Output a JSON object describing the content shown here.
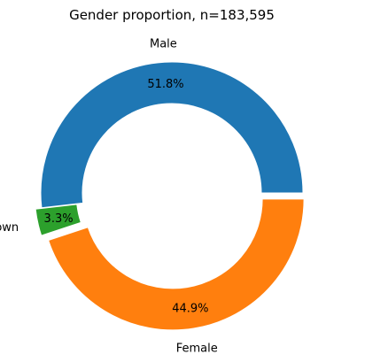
{
  "chart_data": {
    "type": "pie",
    "style": "donut",
    "title": "Gender proportion, n=183,595",
    "slices": [
      {
        "label": "Male",
        "value": 51.8,
        "pct_label": "51.8%",
        "color": "#1f77b4",
        "exploded": false
      },
      {
        "label": "Unknown",
        "value": 3.3,
        "pct_label": "3.3%",
        "color": "#2ca02c",
        "exploded": true
      },
      {
        "label": "Female",
        "value": 44.9,
        "pct_label": "44.9%",
        "color": "#ff7f0e",
        "exploded": true
      }
    ]
  }
}
